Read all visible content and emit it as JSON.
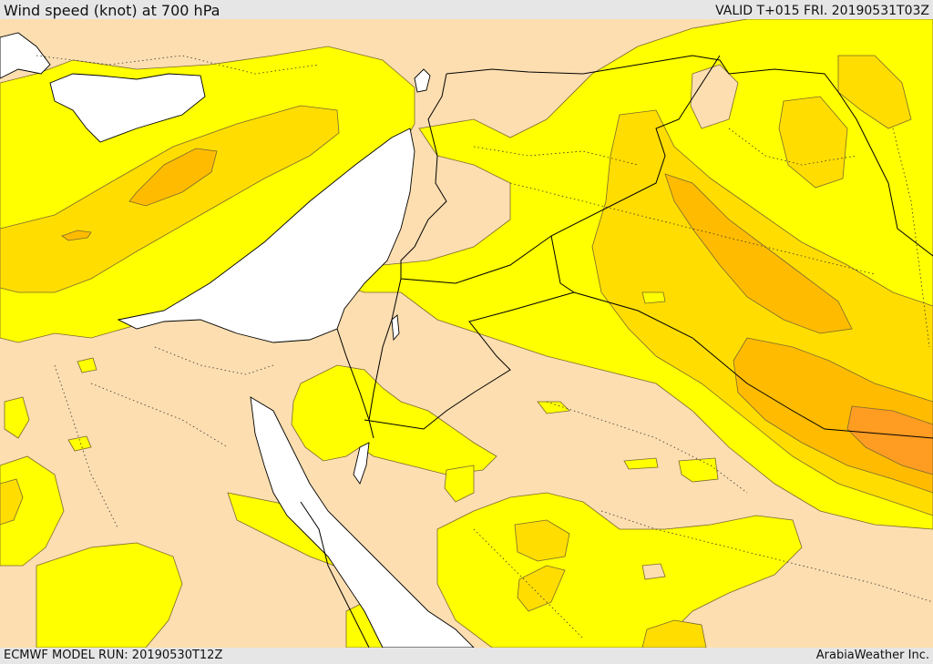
{
  "header": {
    "title": "Wind speed (knot) at 700 hPa",
    "valid": "VALID T+015 FRI. 20190531T03Z"
  },
  "footer": {
    "model_run": "ECMWF MODEL RUN: 20190530T12Z",
    "credit": "ArabiaWeather Inc."
  },
  "map": {
    "colors": {
      "background_band": "#fddeb0",
      "band_yellow": "#ffff00",
      "band_gold": "#ffdd00",
      "band_amber": "#ffbb00",
      "band_orange": "#ff9c22",
      "sea": "#ffffff",
      "coast_line": "#000000",
      "border_line": "#000000",
      "contour_line": "#7a6a30"
    }
  }
}
